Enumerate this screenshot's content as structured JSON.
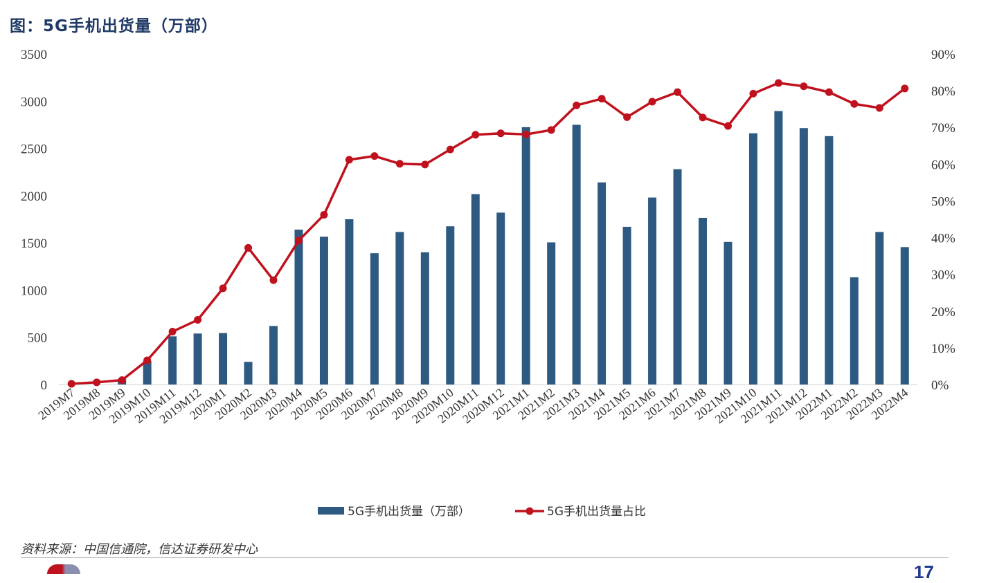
{
  "title": "图：5G手机出货量（万部）",
  "source": "资料来源：中国信通院，信达证券研发中心",
  "page_number": "17",
  "colors": {
    "bar": "#2e5a82",
    "line": "#c0121e",
    "title": "#1f3a66"
  },
  "chart_data": {
    "type": "bar",
    "categories": [
      "2019M7",
      "2019M8",
      "2019M9",
      "2019M10",
      "2019M11",
      "2019M12",
      "2020M1",
      "2020M2",
      "2020M3",
      "2020M4",
      "2020M5",
      "2020M6",
      "2020M7",
      "2020M8",
      "2020M9",
      "2020M10",
      "2020M11",
      "2020M12",
      "2021M1",
      "2021M2",
      "2021M3",
      "2021M4",
      "2021M5",
      "2021M6",
      "2021M7",
      "2021M8",
      "2021M9",
      "2021M10",
      "2021M11",
      "2021M12",
      "2022M1",
      "2022M2",
      "2022M3",
      "2022M4"
    ],
    "series": [
      {
        "name": "5G手机出货量（万部）",
        "type": "bar",
        "axis": "left",
        "values": [
          0,
          0,
          60,
          250,
          510,
          540,
          545,
          240,
          620,
          1640,
          1565,
          1750,
          1390,
          1615,
          1400,
          1675,
          2015,
          1820,
          2725,
          1505,
          2750,
          2140,
          1670,
          1980,
          2280,
          1765,
          1510,
          2660,
          2895,
          2715,
          2630,
          1135,
          1615,
          1455
        ]
      },
      {
        "name": "5G手机出货量占比",
        "type": "line",
        "axis": "right",
        "values": [
          0.2,
          0.6,
          1.2,
          6.6,
          14.4,
          17.6,
          26.2,
          37.2,
          28.4,
          39.2,
          46.2,
          61.2,
          62.2,
          60.1,
          59.9,
          64.0,
          68.0,
          68.4,
          68.1,
          69.3,
          76.0,
          77.8,
          72.8,
          77.0,
          79.6,
          72.7,
          70.4,
          79.2,
          82.1,
          81.2,
          79.6,
          76.4,
          75.3,
          80.6
        ]
      }
    ],
    "left_axis": {
      "min": 0,
      "max": 3500,
      "step": 500,
      "ticks": [
        "0",
        "500",
        "1000",
        "1500",
        "2000",
        "2500",
        "3000",
        "3500"
      ]
    },
    "right_axis": {
      "min": 0,
      "max": 90,
      "step": 10,
      "ticks": [
        "0%",
        "10%",
        "20%",
        "30%",
        "40%",
        "50%",
        "60%",
        "70%",
        "80%",
        "90%"
      ]
    },
    "grid": false,
    "legend_position": "bottom"
  }
}
